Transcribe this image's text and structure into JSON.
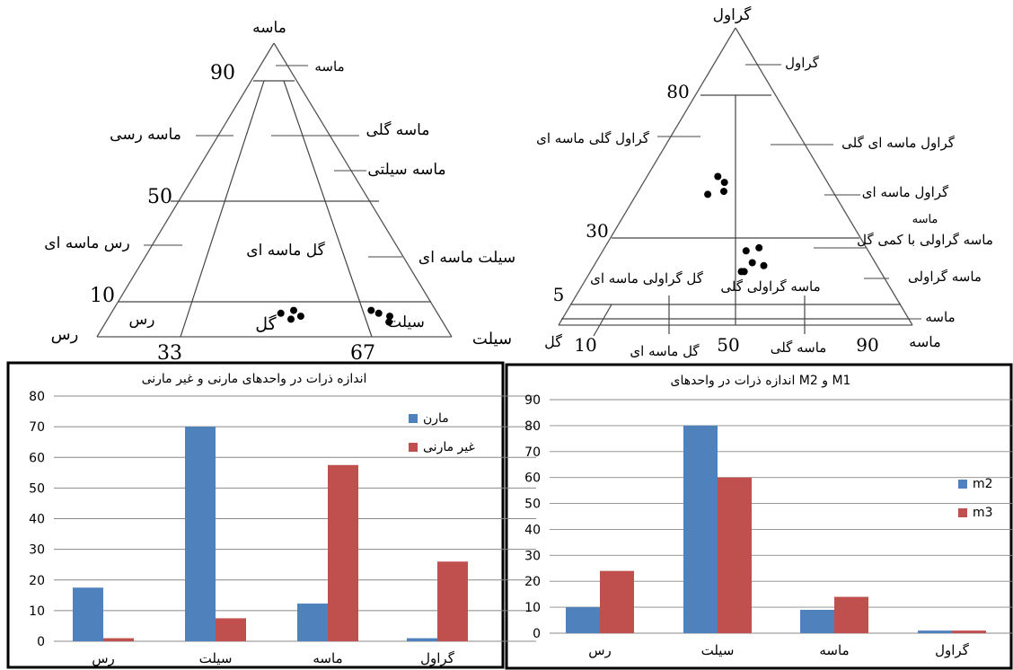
{
  "chart_data": [
    {
      "type": "ternary",
      "title": "",
      "corner_labels": {
        "top": "ماسه",
        "left": "رس",
        "right": "سیلت"
      },
      "bottom_ticks": [
        "33",
        "67"
      ],
      "side_ticks": [
        "90",
        "50",
        "10"
      ],
      "region_labels": [
        "ماسه",
        "ماسه رسی",
        "ماسه گلی",
        "ماسه سیلتی",
        "رس ماسه ای",
        "گل ماسه ای",
        "سیلت ماسه ای",
        "رس",
        "گل",
        "سیلت"
      ],
      "points": [
        {
          "sand": 7,
          "silt": 58
        },
        {
          "sand": 9,
          "silt": 56
        },
        {
          "sand": 6,
          "silt": 55
        },
        {
          "sand": 8,
          "silt": 52
        },
        {
          "sand": 9,
          "silt": 80
        },
        {
          "sand": 8,
          "silt": 82
        },
        {
          "sand": 7,
          "silt": 85
        },
        {
          "sand": 5,
          "silt": 84
        }
      ]
    },
    {
      "type": "ternary",
      "title": "",
      "corner_labels": {
        "top": "گراول",
        "left": "گل",
        "right": "ماسه"
      },
      "bottom_ticks": [
        "10",
        "50",
        "90"
      ],
      "bottom_tick_labels": [
        "گل ماسه ای",
        "ماسه گلی"
      ],
      "side_ticks": [
        "80",
        "30",
        "5"
      ],
      "region_labels": [
        "گراول",
        "گراول گلی ماسه ای",
        "گراول ماسه ای گلی",
        "گراول ماسه ای",
        "ماسه گراولی با کمی گل",
        "ماسه گراولی",
        "گل گراولی ماسه ای",
        "ماسه گراولی گلی",
        "ماسه"
      ],
      "points": [
        {
          "gravel": 50,
          "sand": 40
        },
        {
          "gravel": 48,
          "sand": 44
        },
        {
          "gravel": 45,
          "sand": 44
        },
        {
          "gravel": 44,
          "sand": 36
        },
        {
          "gravel": 25,
          "sand": 54
        },
        {
          "gravel": 26,
          "sand": 59
        },
        {
          "gravel": 21,
          "sand": 56
        },
        {
          "gravel": 20,
          "sand": 60
        },
        {
          "gravel": 18,
          "sand": 52
        },
        {
          "gravel": 18,
          "sand": 53
        }
      ]
    },
    {
      "type": "bar",
      "title": "اندازه ذرات در واحدهای مارنی و غیر مارنی",
      "categories": [
        "رس",
        "سیلت",
        "ماسه",
        "گراول"
      ],
      "series": [
        {
          "name": "مارن",
          "values": [
            17.5,
            70,
            12.3,
            1
          ],
          "color": "#4F81BD"
        },
        {
          "name": "غیر مارنی",
          "values": [
            1,
            7.5,
            57.5,
            26
          ],
          "color": "#C0504D"
        }
      ],
      "ylim": [
        0,
        80
      ],
      "yticks": [
        "0",
        "10",
        "20",
        "30",
        "40",
        "50",
        "60",
        "70",
        "80"
      ],
      "grid": true,
      "legend": "top-right"
    },
    {
      "type": "bar",
      "title": "اندازه ذرات در واحدهای  M2 و M1",
      "categories": [
        "رس",
        "سیلت",
        "ماسه",
        "گراول"
      ],
      "series": [
        {
          "name": "m2",
          "values": [
            10,
            80,
            9,
            1
          ],
          "color": "#4F81BD"
        },
        {
          "name": "m3",
          "values": [
            24,
            60,
            14,
            1
          ],
          "color": "#C0504D"
        }
      ],
      "ylim": [
        0,
        90
      ],
      "yticks": [
        "0",
        "10",
        "20",
        "30",
        "40",
        "50",
        "60",
        "70",
        "80",
        "90"
      ],
      "grid": true,
      "legend": "right"
    }
  ]
}
